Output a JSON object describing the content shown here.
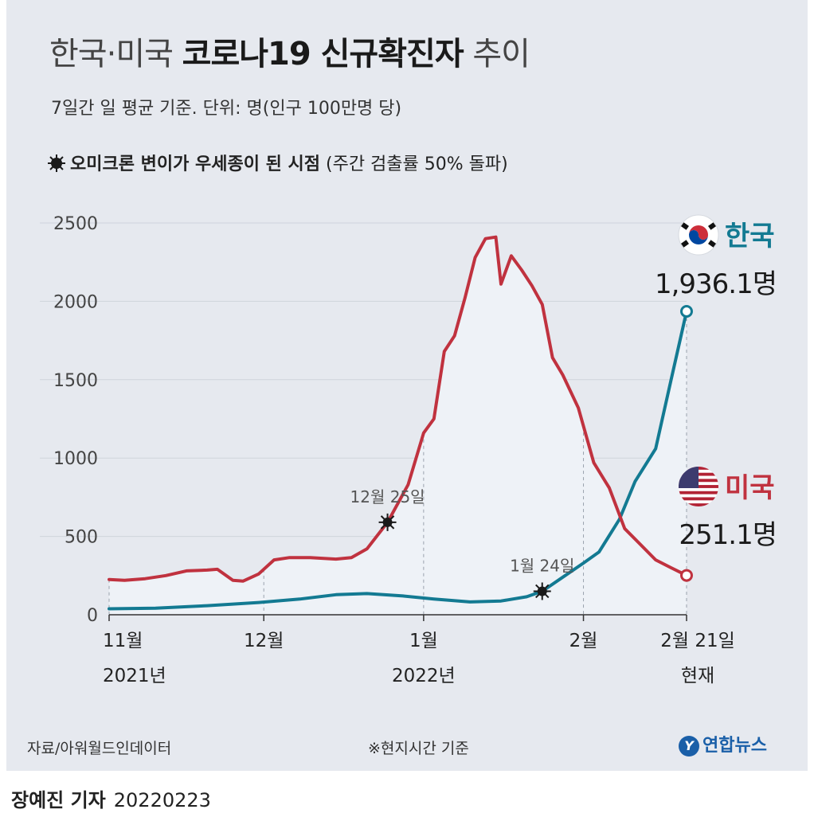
{
  "title": {
    "part1": "한국·미국 ",
    "part2": "코로나19 신규확진자",
    "part3": " 추이"
  },
  "subtitle": "7일간 일 평균 기준. 단위: 명(인구 100만명 당)",
  "omicron_note": {
    "bold": "오미크론 변이가 우세종이 된 시점",
    "normal": " (주간 검출률 50% 돌파)"
  },
  "source": "자료/아워월드인데이터",
  "footnote": "※현지시간 기준",
  "logo": "연합뉴스",
  "credit": {
    "name": "장예진 기자",
    "date": "20220223"
  },
  "colors": {
    "korea": "#137a92",
    "usa": "#c0323f",
    "fill": "#eef2f7",
    "grid": "#cfd4dc"
  },
  "chart_data": {
    "type": "line",
    "title": "한국·미국 코로나19 신규확진자 추이",
    "ylabel": "",
    "ylim": [
      0,
      2500
    ],
    "yticks": [
      "0",
      "500",
      "1000",
      "1500",
      "2000",
      "2500"
    ],
    "x_range": [
      "2021-11-01",
      "2022-02-21"
    ],
    "xticks": [
      {
        "date": "2021-11-01",
        "line1": "11월",
        "line2": "2021년"
      },
      {
        "date": "2021-12-01",
        "line1": "12월",
        "line2": ""
      },
      {
        "date": "2022-01-01",
        "line1": "1월",
        "line2": "2022년"
      },
      {
        "date": "2022-02-01",
        "line1": "2월",
        "line2": ""
      },
      {
        "date": "2022-02-21",
        "line1": "2월 21일",
        "line2": "현재"
      }
    ],
    "series": [
      {
        "name": "한국",
        "color": "#137a92",
        "end_label": "1,936.1명",
        "end_value": 1936.1,
        "omicron_date": "2022-01-24",
        "omicron_label": "1월 24일",
        "points": [
          [
            "2021-11-01",
            38
          ],
          [
            "2021-11-10",
            42
          ],
          [
            "2021-11-20",
            58
          ],
          [
            "2021-11-30",
            78
          ],
          [
            "2021-12-08",
            100
          ],
          [
            "2021-12-15",
            128
          ],
          [
            "2021-12-21",
            135
          ],
          [
            "2021-12-28",
            120
          ],
          [
            "2022-01-03",
            100
          ],
          [
            "2022-01-10",
            82
          ],
          [
            "2022-01-16",
            88
          ],
          [
            "2022-01-21",
            115
          ],
          [
            "2022-01-24",
            150
          ],
          [
            "2022-01-28",
            240
          ],
          [
            "2022-02-01",
            330
          ],
          [
            "2022-02-04",
            400
          ],
          [
            "2022-02-08",
            610
          ],
          [
            "2022-02-11",
            850
          ],
          [
            "2022-02-15",
            1060
          ],
          [
            "2022-02-18",
            1500
          ],
          [
            "2022-02-21",
            1936.1
          ]
        ]
      },
      {
        "name": "미국",
        "color": "#c0323f",
        "end_label": "251.1명",
        "end_value": 251.1,
        "omicron_date": "2021-12-25",
        "omicron_label": "12월 25일",
        "points": [
          [
            "2021-11-01",
            225
          ],
          [
            "2021-11-04",
            220
          ],
          [
            "2021-11-08",
            230
          ],
          [
            "2021-11-12",
            250
          ],
          [
            "2021-11-16",
            280
          ],
          [
            "2021-11-20",
            285
          ],
          [
            "2021-11-22",
            290
          ],
          [
            "2021-11-25",
            220
          ],
          [
            "2021-11-27",
            215
          ],
          [
            "2021-11-30",
            260
          ],
          [
            "2021-12-03",
            350
          ],
          [
            "2021-12-06",
            365
          ],
          [
            "2021-12-10",
            365
          ],
          [
            "2021-12-15",
            355
          ],
          [
            "2021-12-18",
            365
          ],
          [
            "2021-12-21",
            420
          ],
          [
            "2021-12-25",
            590
          ],
          [
            "2021-12-29",
            830
          ],
          [
            "2022-01-01",
            1160
          ],
          [
            "2022-01-03",
            1250
          ],
          [
            "2022-01-05",
            1680
          ],
          [
            "2022-01-07",
            1780
          ],
          [
            "2022-01-09",
            2020
          ],
          [
            "2022-01-11",
            2280
          ],
          [
            "2022-01-13",
            2400
          ],
          [
            "2022-01-15",
            2410
          ],
          [
            "2022-01-16",
            2110
          ],
          [
            "2022-01-18",
            2290
          ],
          [
            "2022-01-20",
            2200
          ],
          [
            "2022-01-22",
            2100
          ],
          [
            "2022-01-24",
            1980
          ],
          [
            "2022-01-26",
            1640
          ],
          [
            "2022-01-28",
            1530
          ],
          [
            "2022-01-31",
            1320
          ],
          [
            "2022-02-03",
            970
          ],
          [
            "2022-02-06",
            810
          ],
          [
            "2022-02-09",
            550
          ],
          [
            "2022-02-12",
            450
          ],
          [
            "2022-02-15",
            350
          ],
          [
            "2022-02-18",
            300
          ],
          [
            "2022-02-21",
            251.1
          ]
        ]
      }
    ]
  }
}
